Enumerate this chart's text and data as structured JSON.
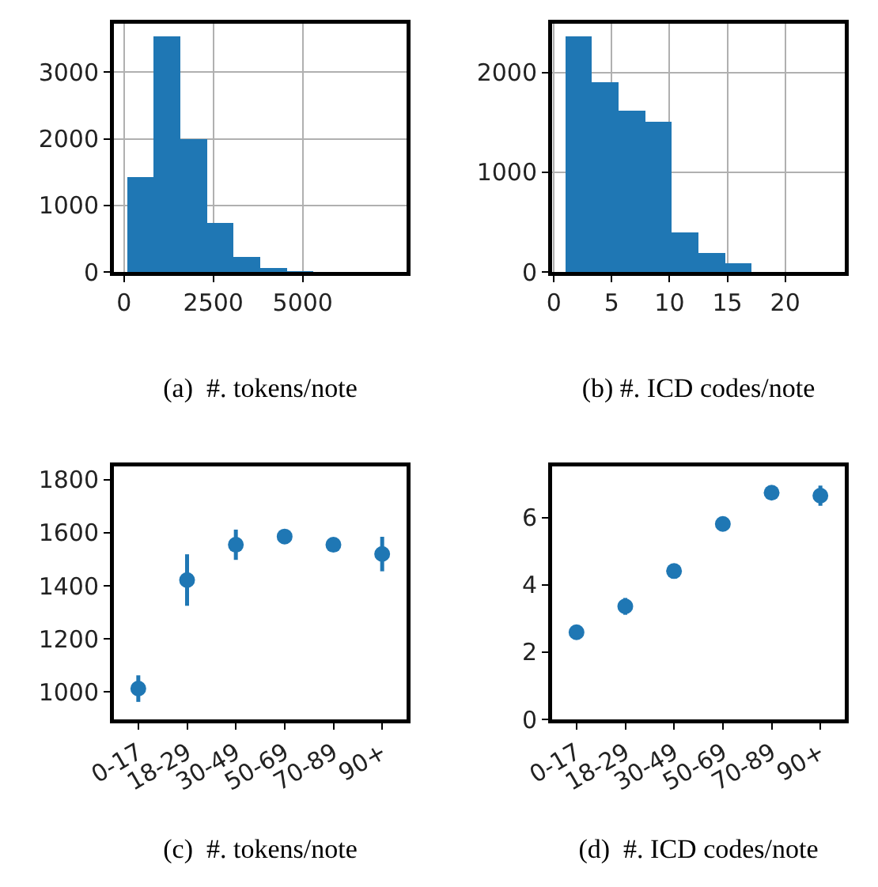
{
  "chart_data": [
    {
      "type": "histogram",
      "xlabel": "(a)  #. tokens/note",
      "color": "#1f77b4",
      "bins": [
        90,
        834,
        1578,
        2322,
        3066,
        3810,
        4554,
        5298,
        6042,
        6786,
        7530
      ],
      "values": [
        1430,
        3540,
        2000,
        740,
        230,
        60,
        10,
        0,
        0,
        0
      ],
      "xlim": [
        -282,
        7902
      ],
      "xticks": [
        0,
        2500,
        5000
      ],
      "ylim": [
        0,
        3730
      ],
      "yticks": [
        0,
        1000,
        2000,
        3000
      ],
      "grid": true
    },
    {
      "type": "histogram",
      "xlabel": "(b) #. ICD codes/note",
      "color": "#1f77b4",
      "bins": [
        1,
        3.3,
        5.6,
        7.9,
        10.2,
        12.5,
        14.8,
        17.1,
        19.4,
        21.7,
        24
      ],
      "values": [
        2360,
        1900,
        1620,
        1510,
        400,
        190,
        90,
        0,
        0,
        0
      ],
      "xlim": [
        -0.15,
        25.15
      ],
      "xticks": [
        0,
        5,
        10,
        15,
        20
      ],
      "ylim": [
        0,
        2490
      ],
      "yticks": [
        0,
        1000,
        2000
      ],
      "grid": true
    },
    {
      "type": "scatter",
      "xlabel": "(c)  #. tokens/note",
      "color": "#1f77b4",
      "marker": "circle",
      "categories": [
        "0-17",
        "18-29",
        "30-49",
        "50-69",
        "70-89",
        "90+"
      ],
      "values": [
        1013,
        1422,
        1555,
        1586,
        1555,
        1520
      ],
      "errors": [
        50,
        97,
        57,
        25,
        25,
        65
      ],
      "ylim": [
        897,
        1850
      ],
      "yticks": [
        1000,
        1200,
        1400,
        1600,
        1800
      ],
      "grid": false
    },
    {
      "type": "scatter",
      "xlabel": "(d)  #. ICD codes/note",
      "color": "#1f77b4",
      "marker": "circle",
      "categories": [
        "0-17",
        "18-29",
        "30-49",
        "50-69",
        "70-89",
        "90+"
      ],
      "values": [
        2.59,
        3.36,
        4.41,
        5.81,
        6.74,
        6.65
      ],
      "errors": [
        0.05,
        0.25,
        0.08,
        0.06,
        0.06,
        0.3
      ],
      "ylim": [
        0,
        7.52
      ],
      "yticks": [
        0,
        2,
        4,
        6
      ],
      "grid": false
    }
  ]
}
